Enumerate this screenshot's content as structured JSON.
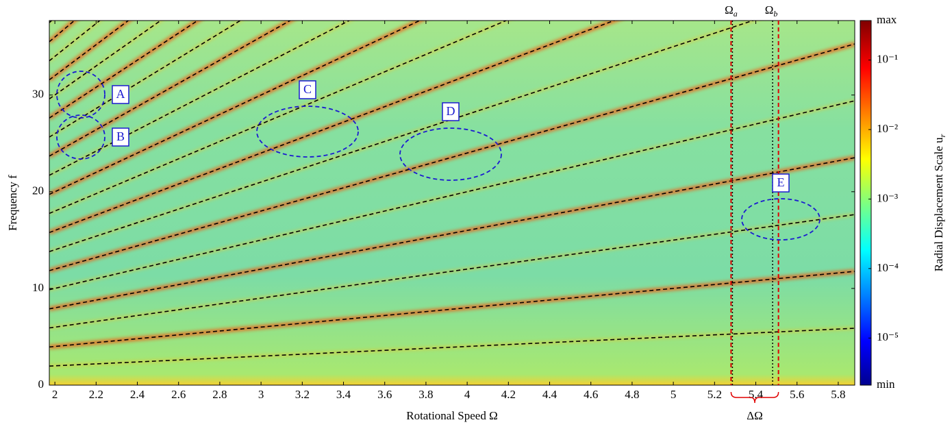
{
  "chart_data": {
    "type": "heatmap",
    "x_label": "Rotational Speed Ω",
    "y_label": "Frequency f",
    "xlim": [
      1.973,
      5.88
    ],
    "ylim": [
      0,
      37.7
    ],
    "xticks": [
      2,
      2.2,
      2.4,
      2.6,
      2.8,
      3,
      3.2,
      3.4,
      3.6,
      3.8,
      4,
      4.2,
      4.4,
      4.6,
      4.8,
      5,
      5.2,
      5.4,
      5.6,
      5.8
    ],
    "yticks": [
      0,
      10,
      20,
      30
    ],
    "x": [
      1.973,
      5.88
    ],
    "line_color": "#000000",
    "series": [
      {
        "values": [
          1.97,
          5.88
        ]
      },
      {
        "values": [
          3.95,
          11.76
        ]
      },
      {
        "values": [
          5.92,
          17.64
        ]
      },
      {
        "values": [
          7.89,
          23.52
        ]
      },
      {
        "values": [
          9.87,
          29.4
        ]
      },
      {
        "values": [
          11.84,
          35.28
        ]
      },
      {
        "values": [
          13.81,
          41.16
        ]
      },
      {
        "values": [
          15.78,
          47.04
        ]
      },
      {
        "values": [
          17.76,
          52.92
        ]
      },
      {
        "values": [
          19.73,
          58.8
        ]
      },
      {
        "values": [
          21.7,
          64.68
        ]
      },
      {
        "values": [
          23.68,
          70.56
        ]
      },
      {
        "values": [
          25.65,
          76.44
        ]
      },
      {
        "values": [
          27.62,
          82.32
        ]
      },
      {
        "values": [
          29.6,
          88.2
        ]
      },
      {
        "values": [
          31.57,
          94.08
        ]
      },
      {
        "values": [
          33.54,
          99.96
        ]
      },
      {
        "values": [
          35.51,
          105.84
        ]
      },
      {
        "values": [
          37.49,
          111.72
        ]
      }
    ],
    "annotations": [
      {
        "text": "A"
      },
      {
        "text": "B"
      },
      {
        "text": "C"
      },
      {
        "text": "D"
      },
      {
        "text": "E"
      }
    ],
    "markers": [
      {
        "label": "Ω",
        "sub": "a",
        "value": 5.28
      },
      {
        "label": "Ω",
        "sub": "b",
        "value": 5.475
      }
    ],
    "delta": {
      "label": "ΔΩ",
      "from": 5.28,
      "to": 5.51,
      "color": "#e00000"
    },
    "colorbar": {
      "label": "Radial Displacement Scale u",
      "label_sub": "r",
      "log_scale": true,
      "clim": [
        2.1e-06,
        0.37
      ],
      "ticks": [
        {
          "value": 2.1e-06,
          "label": "min"
        },
        {
          "value": 1e-05,
          "label": "10⁻⁵"
        },
        {
          "value": 0.0001,
          "label": "10⁻⁴"
        },
        {
          "value": 0.001,
          "label": "10⁻³"
        },
        {
          "value": 0.01,
          "label": "10⁻²"
        },
        {
          "value": 0.1,
          "label": "10⁻¹"
        },
        {
          "value": 0.37,
          "label": "max"
        }
      ]
    }
  }
}
